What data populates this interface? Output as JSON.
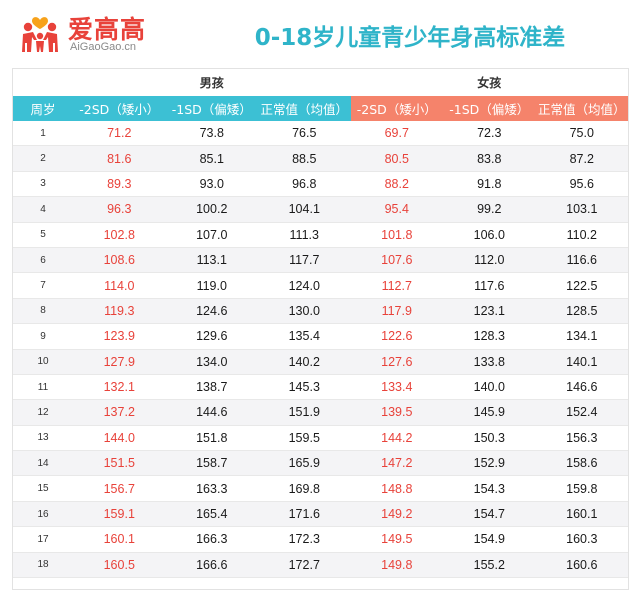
{
  "logo": {
    "name_cn": "爱高高",
    "name_en": "AiGaoGao.cn",
    "mark_icon": "family-heart-icon"
  },
  "title": "0-18岁儿童青少年身高标准差",
  "groups": {
    "boys": "男孩",
    "girls": "女孩"
  },
  "headers": [
    "周岁",
    "-2SD（矮小）",
    "-1SD（偏矮）",
    "正常值（均值）",
    "-2SD（矮小）",
    "-1SD（偏矮）",
    "正常值（均值）"
  ],
  "colors": {
    "teal": "#3cc0d4",
    "coral": "#f5836b",
    "red_text": "#e8423a",
    "title": "#2fb4c9"
  },
  "rows": [
    [
      "1",
      "71.2",
      "73.8",
      "76.5",
      "69.7",
      "72.3",
      "75.0"
    ],
    [
      "2",
      "81.6",
      "85.1",
      "88.5",
      "80.5",
      "83.8",
      "87.2"
    ],
    [
      "3",
      "89.3",
      "93.0",
      "96.8",
      "88.2",
      "91.8",
      "95.6"
    ],
    [
      "4",
      "96.3",
      "100.2",
      "104.1",
      "95.4",
      "99.2",
      "103.1"
    ],
    [
      "5",
      "102.8",
      "107.0",
      "111.3",
      "101.8",
      "106.0",
      "110.2"
    ],
    [
      "6",
      "108.6",
      "113.1",
      "117.7",
      "107.6",
      "112.0",
      "116.6"
    ],
    [
      "7",
      "114.0",
      "119.0",
      "124.0",
      "112.7",
      "117.6",
      "122.5"
    ],
    [
      "8",
      "119.3",
      "124.6",
      "130.0",
      "117.9",
      "123.1",
      "128.5"
    ],
    [
      "9",
      "123.9",
      "129.6",
      "135.4",
      "122.6",
      "128.3",
      "134.1"
    ],
    [
      "10",
      "127.9",
      "134.0",
      "140.2",
      "127.6",
      "133.8",
      "140.1"
    ],
    [
      "11",
      "132.1",
      "138.7",
      "145.3",
      "133.4",
      "140.0",
      "146.6"
    ],
    [
      "12",
      "137.2",
      "144.6",
      "151.9",
      "139.5",
      "145.9",
      "152.4"
    ],
    [
      "13",
      "144.0",
      "151.8",
      "159.5",
      "144.2",
      "150.3",
      "156.3"
    ],
    [
      "14",
      "151.5",
      "158.7",
      "165.9",
      "147.2",
      "152.9",
      "158.6"
    ],
    [
      "15",
      "156.7",
      "163.3",
      "169.8",
      "148.8",
      "154.3",
      "159.8"
    ],
    [
      "16",
      "159.1",
      "165.4",
      "171.6",
      "149.2",
      "154.7",
      "160.1"
    ],
    [
      "17",
      "160.1",
      "166.3",
      "172.3",
      "149.5",
      "154.9",
      "160.3"
    ],
    [
      "18",
      "160.5",
      "166.6",
      "172.7",
      "149.8",
      "155.2",
      "160.6"
    ]
  ]
}
